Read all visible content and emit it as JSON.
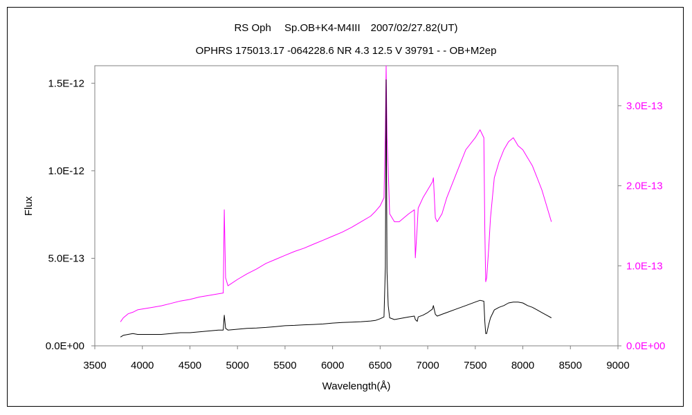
{
  "chart_data": {
    "type": "line",
    "title": "RS Oph　 Sp.OB+K4-M4III　2007/02/27.82(UT)",
    "subtitle": "OPHRS 175013.17 -064228.6 NR 4.3 12.5 V 39791 - - OB+M2ep",
    "xlabel": "Wavelength(Å)",
    "ylabel": "Flux",
    "xlim": [
      3500,
      9000
    ],
    "ylim_left": [
      0,
      1.6e-12
    ],
    "ylim_right": [
      0,
      3.5e-13
    ],
    "x_ticks": [
      3500,
      4000,
      4500,
      5000,
      5500,
      6000,
      6500,
      7000,
      7500,
      8000,
      8500,
      9000
    ],
    "x_tick_labels": [
      "3500",
      "4000",
      "4500",
      "5000",
      "5500",
      "6000",
      "6500",
      "7000",
      "7500",
      "8000",
      "8500",
      "9000"
    ],
    "y_left_ticks": [
      0,
      5e-13,
      1e-12,
      1.5e-12
    ],
    "y_left_tick_labels": [
      "0.0E+00",
      "5.0E-13",
      "1.0E-12",
      "1.5E-12"
    ],
    "y_right_ticks": [
      0,
      1e-13,
      2e-13,
      3e-13
    ],
    "y_right_tick_labels": [
      "0.0E+00",
      "1.0E-13",
      "2.0E-13",
      "3.0E-13"
    ],
    "grid": false,
    "colors": {
      "left_series": "#000000",
      "right_series": "#ff00ff",
      "right_axis": "#ff00ff"
    },
    "series": [
      {
        "axis": "left",
        "color": "#000000",
        "x": [
          3770,
          3800,
          3850,
          3900,
          3950,
          4000,
          4100,
          4200,
          4300,
          4400,
          4500,
          4600,
          4700,
          4800,
          4850,
          4861,
          4875,
          4900,
          5000,
          5100,
          5200,
          5300,
          5400,
          5500,
          5600,
          5700,
          5800,
          5900,
          6000,
          6100,
          6200,
          6300,
          6400,
          6450,
          6500,
          6540,
          6555,
          6563,
          6572,
          6585,
          6600,
          6650,
          6700,
          6750,
          6800,
          6860,
          6870,
          6890,
          6900,
          6950,
          7000,
          7050,
          7060,
          7080,
          7100,
          7150,
          7200,
          7300,
          7400,
          7500,
          7550,
          7590,
          7600,
          7610,
          7620,
          7640,
          7660,
          7700,
          7750,
          7800,
          7850,
          7900,
          7950,
          8000,
          8050,
          8100,
          8150,
          8200,
          8250,
          8300
        ],
        "y": [
          5e-14,
          6e-14,
          6.5e-14,
          7e-14,
          6.5e-14,
          6.5e-14,
          6.5e-14,
          6.5e-14,
          7e-14,
          7.5e-14,
          7.5e-14,
          8e-14,
          8.5e-14,
          9e-14,
          9e-14,
          1.75e-13,
          1e-13,
          9e-14,
          9.5e-14,
          1e-13,
          1.02e-13,
          1.05e-13,
          1.1e-13,
          1.15e-13,
          1.17e-13,
          1.2e-13,
          1.22e-13,
          1.25e-13,
          1.3e-13,
          1.33e-13,
          1.35e-13,
          1.38e-13,
          1.42e-13,
          1.45e-13,
          1.55e-13,
          1.65e-13,
          4.5e-13,
          1.52e-12,
          4.2e-13,
          2.3e-13,
          1.6e-13,
          1.5e-13,
          1.55e-13,
          1.6e-13,
          1.65e-13,
          1.7e-13,
          1.5e-13,
          1.4e-13,
          1.65e-13,
          1.75e-13,
          1.9e-13,
          2.1e-13,
          2.3e-13,
          1.8e-13,
          1.7e-13,
          1.8e-13,
          1.9e-13,
          2.1e-13,
          2.3e-13,
          2.5e-13,
          2.6e-13,
          2.55e-13,
          1.4e-13,
          7e-14,
          7e-14,
          1.2e-13,
          1.6e-13,
          2.05e-13,
          2.2e-13,
          2.3e-13,
          2.45e-13,
          2.5e-13,
          2.5e-13,
          2.45e-13,
          2.3e-13,
          2.2e-13,
          2.05e-13,
          1.9e-13,
          1.75e-13,
          1.6e-13
        ]
      },
      {
        "axis": "right",
        "color": "#ff00ff",
        "x": [
          3770,
          3800,
          3850,
          3900,
          3950,
          4000,
          4100,
          4200,
          4300,
          4400,
          4500,
          4600,
          4700,
          4800,
          4850,
          4861,
          4875,
          4900,
          5000,
          5100,
          5200,
          5300,
          5400,
          5500,
          5600,
          5700,
          5800,
          5900,
          6000,
          6100,
          6200,
          6300,
          6400,
          6450,
          6500,
          6540,
          6555,
          6563,
          6572,
          6585,
          6600,
          6650,
          6700,
          6750,
          6800,
          6860,
          6870,
          6890,
          6900,
          6950,
          7000,
          7050,
          7060,
          7080,
          7100,
          7150,
          7200,
          7300,
          7400,
          7500,
          7550,
          7590,
          7600,
          7610,
          7620,
          7640,
          7660,
          7700,
          7750,
          7800,
          7850,
          7900,
          7950,
          8000,
          8050,
          8100,
          8150,
          8200,
          8250,
          8300
        ],
        "y": [
          3e-14,
          3.5e-14,
          4e-14,
          4.2e-14,
          4.5e-14,
          4.6e-14,
          4.8e-14,
          5e-14,
          5.3e-14,
          5.6e-14,
          5.8e-14,
          6.1e-14,
          6.3e-14,
          6.5e-14,
          6.6e-14,
          1.7e-13,
          8.5e-14,
          7.5e-14,
          8.3e-14,
          9e-14,
          9.6e-14,
          1.03e-13,
          1.08e-13,
          1.13e-13,
          1.18e-13,
          1.22e-13,
          1.27e-13,
          1.32e-13,
          1.37e-13,
          1.42e-13,
          1.48e-13,
          1.55e-13,
          1.62e-13,
          1.68e-13,
          1.75e-13,
          1.85e-13,
          2.7e-13,
          3.5e-13,
          2.6e-13,
          2.2e-13,
          1.65e-13,
          1.55e-13,
          1.55e-13,
          1.6e-13,
          1.65e-13,
          1.7e-13,
          1.1e-13,
          1.5e-13,
          1.72e-13,
          1.85e-13,
          1.95e-13,
          2.05e-13,
          2.1e-13,
          1.6e-13,
          1.55e-13,
          1.65e-13,
          1.85e-13,
          2.15e-13,
          2.45e-13,
          2.6e-13,
          2.7e-13,
          2.6e-13,
          1.45e-13,
          8e-14,
          8.5e-14,
          1.2e-13,
          1.6e-13,
          2.1e-13,
          2.3e-13,
          2.45e-13,
          2.55e-13,
          2.6e-13,
          2.5e-13,
          2.45e-13,
          2.35e-13,
          2.25e-13,
          2.1e-13,
          1.95e-13,
          1.75e-13,
          1.55e-13
        ]
      }
    ]
  }
}
